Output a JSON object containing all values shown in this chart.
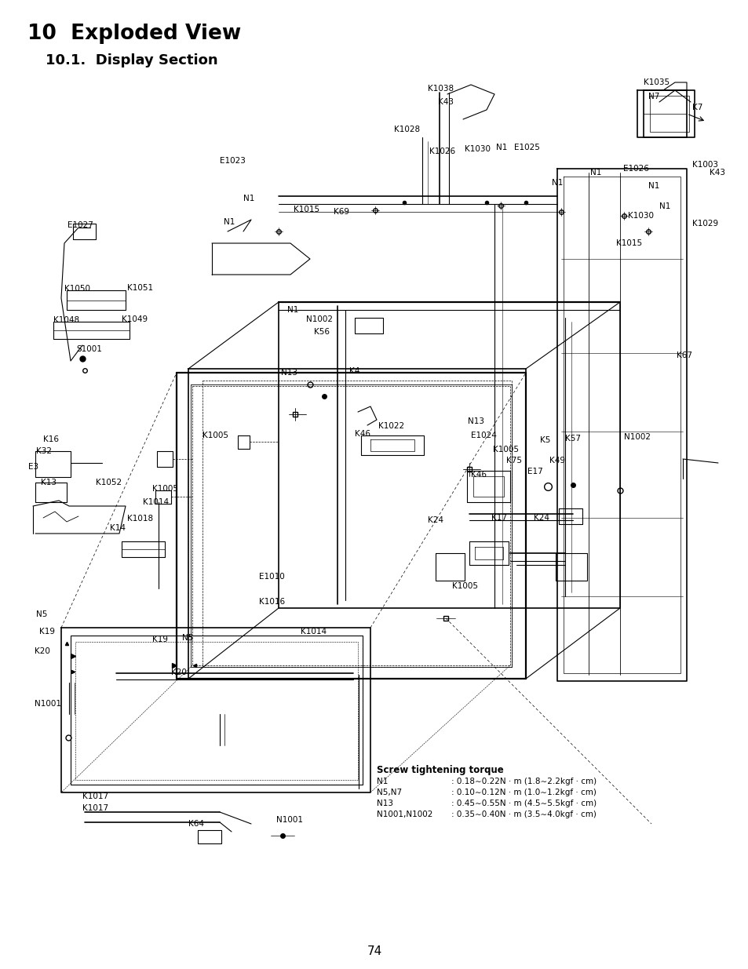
{
  "title": "10  Exploded View",
  "subtitle": "10.1.  Display Section",
  "page_number": "74",
  "bg": "#ffffff",
  "black": "#000000",
  "torque_title": "Screw tightening torque",
  "torque_entries": [
    [
      "N1",
      ": 0.18∼0.22N · m (1.8∼2.2kgf · cm)"
    ],
    [
      "N5,N7",
      ": 0.10∼0.12N · m (1.0∼1.2kgf · cm)"
    ],
    [
      "N13",
      ": 0.45∼0.55N · m (4.5∼5.5kgf · cm)"
    ],
    [
      "N1001,N1002",
      ": 0.35∼0.40N · m (3.5∼4.0kgf · cm)"
    ]
  ]
}
